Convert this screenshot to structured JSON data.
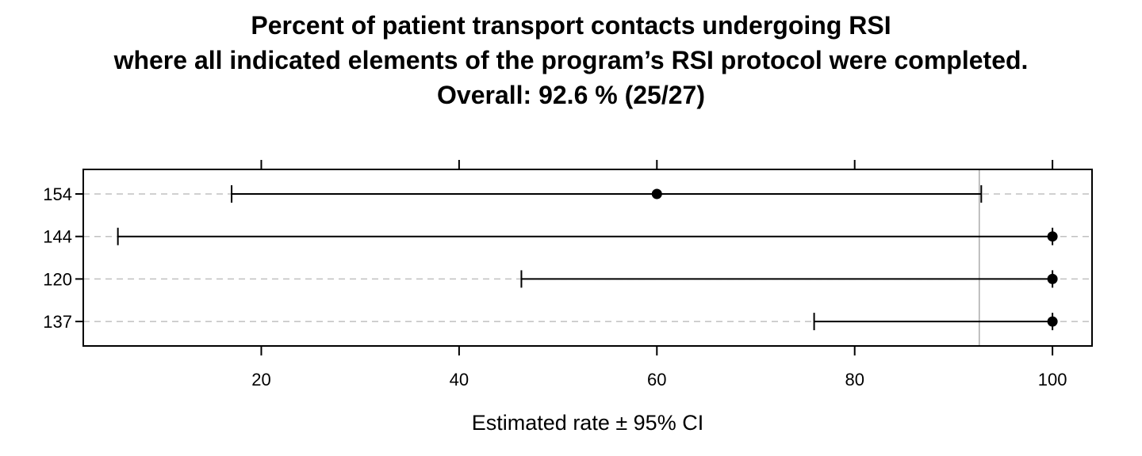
{
  "chart_data": {
    "type": "dot-whisker",
    "title_lines": [
      "Percent of patient transport contacts undergoing RSI",
      "where all indicated elements of the program’s RSI protocol were completed.",
      "Overall:  92.6 %  (25/27)"
    ],
    "xlabel": "Estimated rate ±  95% CI",
    "xlim": [
      2,
      104
    ],
    "xticks": [
      20,
      40,
      60,
      80,
      100
    ],
    "xtick_labels": [
      "20",
      "40",
      "60",
      "80",
      "100"
    ],
    "reference_line": 92.6,
    "grid": "horizontal-dashed",
    "rows": [
      {
        "label": "154",
        "estimate": 60,
        "lower": 17,
        "upper": 92.8
      },
      {
        "label": "144",
        "estimate": 100,
        "lower": 5.5,
        "upper": 100
      },
      {
        "label": "120",
        "estimate": 100,
        "lower": 46.3,
        "upper": 100
      },
      {
        "label": "137",
        "estimate": 100,
        "lower": 75.9,
        "upper": 100
      }
    ]
  }
}
